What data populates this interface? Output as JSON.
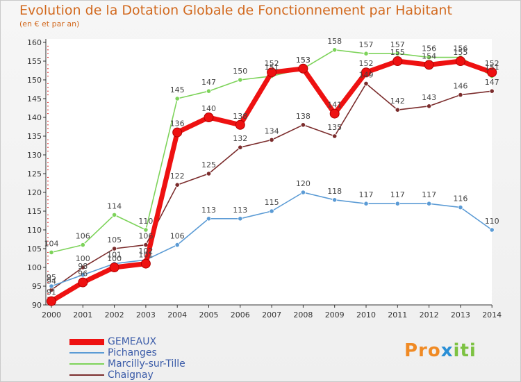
{
  "title": "Evolution de la Dotation Globale de Fonctionnement par Habitant",
  "subtitle": "(en € et par an)",
  "brand": {
    "p1": "Pro",
    "p2": "x",
    "p3": "iti"
  },
  "chart_data": {
    "type": "line",
    "x": [
      "2000",
      "2001",
      "2002",
      "2003",
      "2004",
      "2005",
      "2006",
      "2007",
      "2008",
      "2009",
      "2010",
      "2011",
      "2012",
      "2013",
      "2014"
    ],
    "ylim": [
      90,
      160
    ],
    "yticks": [
      90,
      95,
      100,
      105,
      110,
      115,
      120,
      125,
      130,
      135,
      140,
      145,
      150,
      155,
      160
    ],
    "grid": false,
    "legend_position": "bottom-left",
    "series": [
      {
        "name": "Chaignay",
        "color": "#7b2c2c",
        "values": [
          94,
          100,
          105,
          106,
          122,
          125,
          132,
          134,
          138,
          135,
          149,
          142,
          143,
          146,
          147
        ]
      },
      {
        "name": "Marcilly-sur-Tille",
        "color": "#7dd35a",
        "values": [
          104,
          106,
          114,
          110,
          145,
          147,
          150,
          151,
          153,
          158,
          157,
          157,
          156,
          156,
          151
        ]
      },
      {
        "name": "Pichanges",
        "color": "#5b9bd5",
        "values": [
          95,
          98,
          101,
          102,
          106,
          113,
          113,
          115,
          120,
          118,
          117,
          117,
          117,
          116,
          110
        ]
      },
      {
        "name": "GEMEAUX",
        "color": "#ee1111",
        "values": [
          91,
          96,
          100,
          101,
          136,
          140,
          138,
          152,
          153,
          141,
          152,
          155,
          154,
          155,
          152
        ]
      }
    ]
  }
}
